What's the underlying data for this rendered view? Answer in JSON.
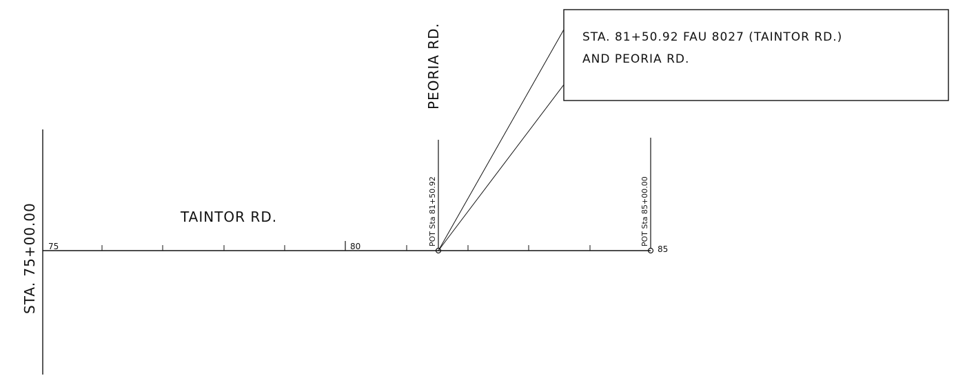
{
  "start_station_label": "STA. 75+00.00",
  "main_road_label": "TAINTOR RD.",
  "cross_road_label": "PEORIA RD.",
  "station_ticks": [
    "75",
    "80",
    "85"
  ],
  "points": [
    {
      "label": "POT Sta 81+50.92"
    },
    {
      "label": "POT Sta 85+00.00"
    }
  ],
  "callout": {
    "line1": "STA. 81+50.92 FAU 8027 (TAINTOR RD.)",
    "line2": "AND PEORIA RD."
  }
}
